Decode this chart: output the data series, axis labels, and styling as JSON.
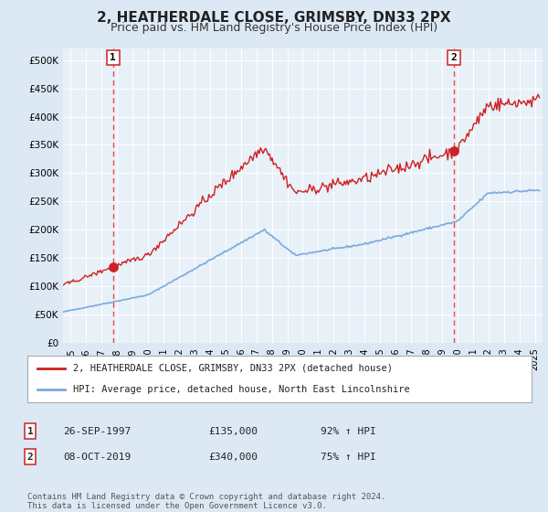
{
  "title": "2, HEATHERDALE CLOSE, GRIMSBY, DN33 2PX",
  "subtitle": "Price paid vs. HM Land Registry's House Price Index (HPI)",
  "bg_color": "#dce9f5",
  "plot_bg_color": "#e8f0f8",
  "hpi_color": "#7aaadd",
  "price_color": "#cc2222",
  "sale1_date": 1997.74,
  "sale1_price": 135000,
  "sale2_date": 2019.77,
  "sale2_price": 340000,
  "ylim_min": 0,
  "ylim_max": 520000,
  "xlim_min": 1994.5,
  "xlim_max": 2025.5,
  "yticks": [
    0,
    50000,
    100000,
    150000,
    200000,
    250000,
    300000,
    350000,
    400000,
    450000,
    500000
  ],
  "ytick_labels": [
    "£0",
    "£50K",
    "£100K",
    "£150K",
    "£200K",
    "£250K",
    "£300K",
    "£350K",
    "£400K",
    "£450K",
    "£500K"
  ],
  "xticks": [
    1995,
    1996,
    1997,
    1998,
    1999,
    2000,
    2001,
    2002,
    2003,
    2004,
    2005,
    2006,
    2007,
    2008,
    2009,
    2010,
    2011,
    2012,
    2013,
    2014,
    2015,
    2016,
    2017,
    2018,
    2019,
    2020,
    2021,
    2022,
    2023,
    2024,
    2025
  ],
  "legend_label_price": "2, HEATHERDALE CLOSE, GRIMSBY, DN33 2PX (detached house)",
  "legend_label_hpi": "HPI: Average price, detached house, North East Lincolnshire",
  "table_rows": [
    {
      "num": "1",
      "date": "26-SEP-1997",
      "price": "£135,000",
      "pct": "92% ↑ HPI"
    },
    {
      "num": "2",
      "date": "08-OCT-2019",
      "price": "£340,000",
      "pct": "75% ↑ HPI"
    }
  ],
  "footer": "Contains HM Land Registry data © Crown copyright and database right 2024.\nThis data is licensed under the Open Government Licence v3.0."
}
